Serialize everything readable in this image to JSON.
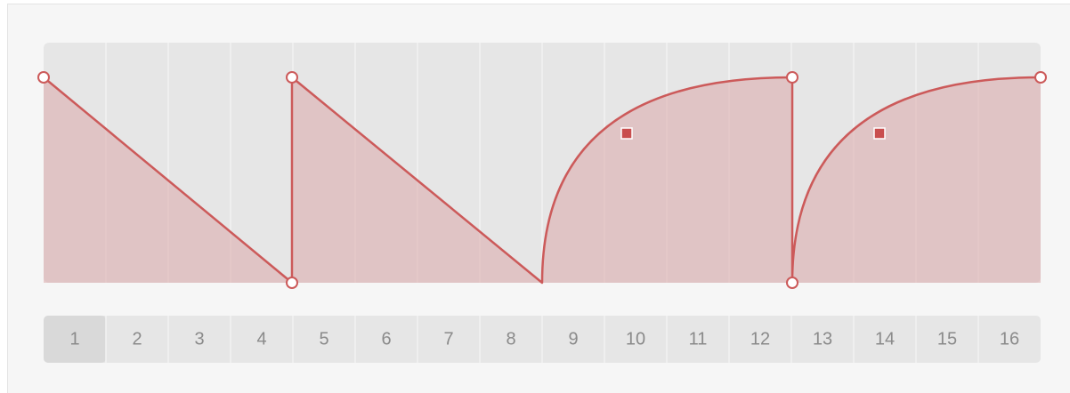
{
  "steps": [
    "1",
    "2",
    "3",
    "4",
    "5",
    "6",
    "7",
    "8",
    "9",
    "10",
    "11",
    "12",
    "13",
    "14",
    "15",
    "16"
  ]
}
